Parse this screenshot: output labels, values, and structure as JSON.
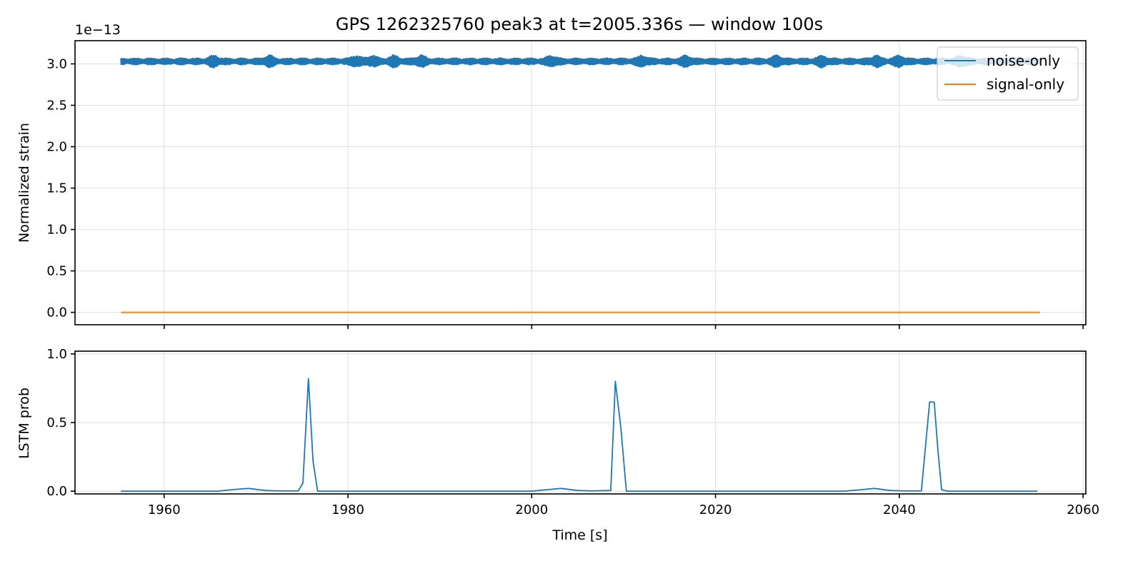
{
  "chart_data": [
    {
      "type": "line",
      "title": "GPS 1262325760 peak3 at t=2005.336s — window 100s",
      "xlabel": "",
      "ylabel": "Normalized strain",
      "y_offset_label": "1e−13",
      "xlim": [
        1950.3,
        2060.3
      ],
      "ylim": [
        -0.15,
        3.28
      ],
      "ytick_values": [
        0.0,
        0.5,
        1.0,
        1.5,
        2.0,
        2.5,
        3.0
      ],
      "ytick_labels": [
        "0.0",
        "0.5",
        "1.0",
        "1.5",
        "2.0",
        "2.5",
        "3.0"
      ],
      "xtick_values": [
        1960,
        1980,
        2000,
        2020,
        2040,
        2060
      ],
      "grid": true,
      "legend": {
        "placement": "upper-right",
        "entries": [
          "noise-only",
          "signal-only"
        ]
      },
      "series": [
        {
          "name": "noise-only",
          "color": "#1f77b4",
          "x_range": [
            1955.3,
            2055.3
          ],
          "center": 3.03,
          "envelope_amplitude_typical": 0.04,
          "envelope_amplitude_max": 0.08,
          "burst_centers": [
            1965.4,
            1971.4,
            1980.9,
            1982.7,
            1985.0,
            1987.9,
            2002.2,
            2012.0,
            2016.8,
            2026.7,
            2031.6,
            2037.5,
            2040.0,
            2046.8
          ]
        },
        {
          "name": "signal-only",
          "color": "#ff7f0e",
          "x": [
            1955.3,
            2055.3
          ],
          "y": [
            0.0,
            0.0
          ]
        }
      ]
    },
    {
      "type": "line",
      "title": "",
      "xlabel": "Time [s]",
      "ylabel": "LSTM prob",
      "xlim": [
        1950.3,
        2060.3
      ],
      "ylim": [
        -0.02,
        1.02
      ],
      "ytick_values": [
        0.0,
        0.5,
        1.0
      ],
      "ytick_labels": [
        "0.0",
        "0.5",
        "1.0"
      ],
      "xtick_values": [
        1960,
        1980,
        2000,
        2020,
        2040,
        2060
      ],
      "xtick_labels": [
        "1960",
        "1980",
        "2000",
        "2020",
        "2040",
        "2060"
      ],
      "grid": true,
      "series": [
        {
          "color": "#1f77b4",
          "x": [
            1955.3,
            1965.8,
            1967.5,
            1969.2,
            1971.0,
            1972.5,
            1974.6,
            1975.1,
            1975.7,
            1976.2,
            1976.7,
            1990.0,
            2000.0,
            2001.5,
            2003.2,
            2005.0,
            2006.5,
            2008.6,
            2009.1,
            2009.7,
            2010.3,
            2010.8,
            2011.3,
            2025.0,
            2034.0,
            2035.7,
            2037.3,
            2039.0,
            2040.5,
            2042.4,
            2043.3,
            2043.8,
            2044.2,
            2044.6,
            2045.2,
            2055.0
          ],
          "y": [
            0.0,
            0.0,
            0.012,
            0.02,
            0.005,
            0.002,
            0.002,
            0.06,
            0.82,
            0.22,
            0.0,
            0.0,
            0.0,
            0.01,
            0.02,
            0.005,
            0.002,
            0.005,
            0.8,
            0.46,
            0.0,
            0.0,
            0.0,
            0.0,
            0.0,
            0.01,
            0.02,
            0.005,
            0.002,
            0.002,
            0.65,
            0.648,
            0.3,
            0.012,
            0.0,
            0.0
          ]
        }
      ]
    }
  ]
}
